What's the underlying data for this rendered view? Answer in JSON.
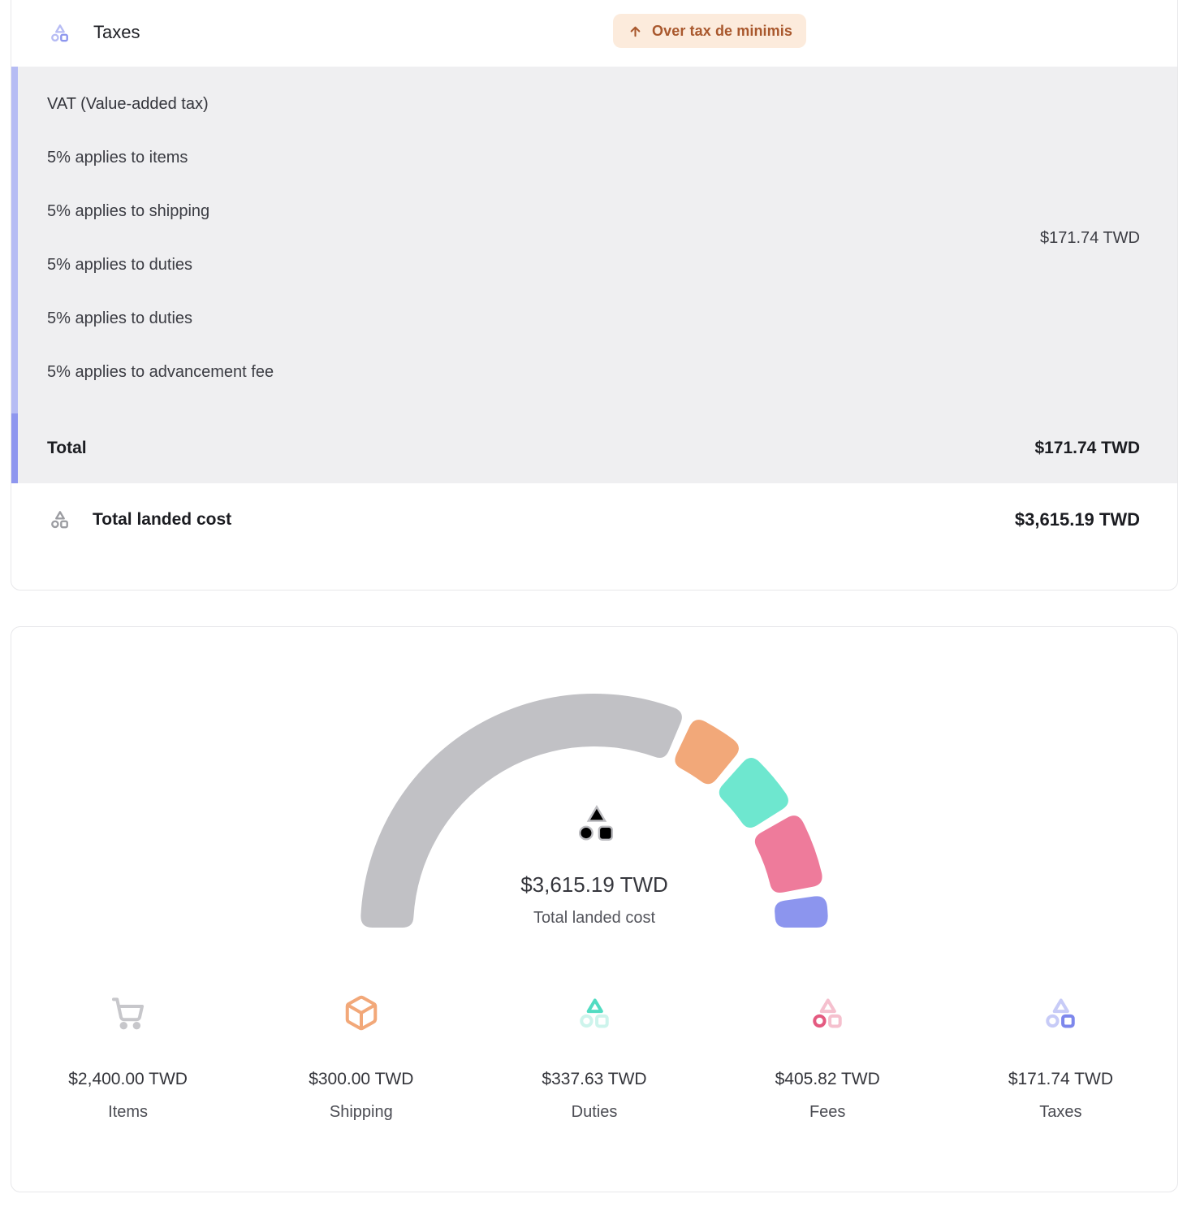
{
  "tax_card": {
    "title": "Taxes",
    "badge": "Over tax de minimis",
    "vat": {
      "title": "VAT (Value-added tax)",
      "lines": [
        "5% applies to items",
        "5% applies to shipping",
        "5% applies to duties",
        "5% applies to duties",
        "5% applies to advancement fee"
      ],
      "amount": "$171.74 TWD",
      "total_label": "Total",
      "total_amount": "$171.74 TWD"
    },
    "total_landed": {
      "label": "Total landed cost",
      "amount": "$3,615.19 TWD"
    }
  },
  "chart_card": {
    "center_amount": "$3,615.19 TWD",
    "center_label": "Total landed cost",
    "legend": [
      {
        "amount": "$2,400.00 TWD",
        "label": "Items",
        "icon": "cart-icon",
        "color": "#c1c1c5"
      },
      {
        "amount": "$300.00 TWD",
        "label": "Shipping",
        "icon": "cube-icon",
        "color": "#f2a879"
      },
      {
        "amount": "$337.63 TWD",
        "label": "Duties",
        "icon": "shapes-triangle-icon",
        "color": "#6ee7cf"
      },
      {
        "amount": "$405.82 TWD",
        "label": "Fees",
        "icon": "shapes-circle-icon",
        "color": "#ee7b9b"
      },
      {
        "amount": "$171.74 TWD",
        "label": "Taxes",
        "icon": "shapes-square-icon",
        "color": "#8c95ee"
      }
    ]
  },
  "chart_data": {
    "type": "pie",
    "subtype": "half-donut-gauge",
    "categories": [
      "Items",
      "Shipping",
      "Duties",
      "Fees",
      "Taxes"
    ],
    "values": [
      2400.0,
      300.0,
      337.63,
      405.82,
      171.74
    ],
    "value_labels": [
      "$2,400.00 TWD",
      "$300.00 TWD",
      "$337.63 TWD",
      "$405.82 TWD",
      "$171.74 TWD"
    ],
    "colors": [
      "#c1c1c5",
      "#f2a879",
      "#6ee7cf",
      "#ee7b9b",
      "#8c95ee"
    ],
    "total": 3615.19,
    "center_label": "$3,615.19 TWD",
    "center_sublabel": "Total landed cost",
    "currency": "TWD",
    "arc_degrees": 180,
    "gap_degrees": 2.5,
    "legend_position": "bottom"
  }
}
